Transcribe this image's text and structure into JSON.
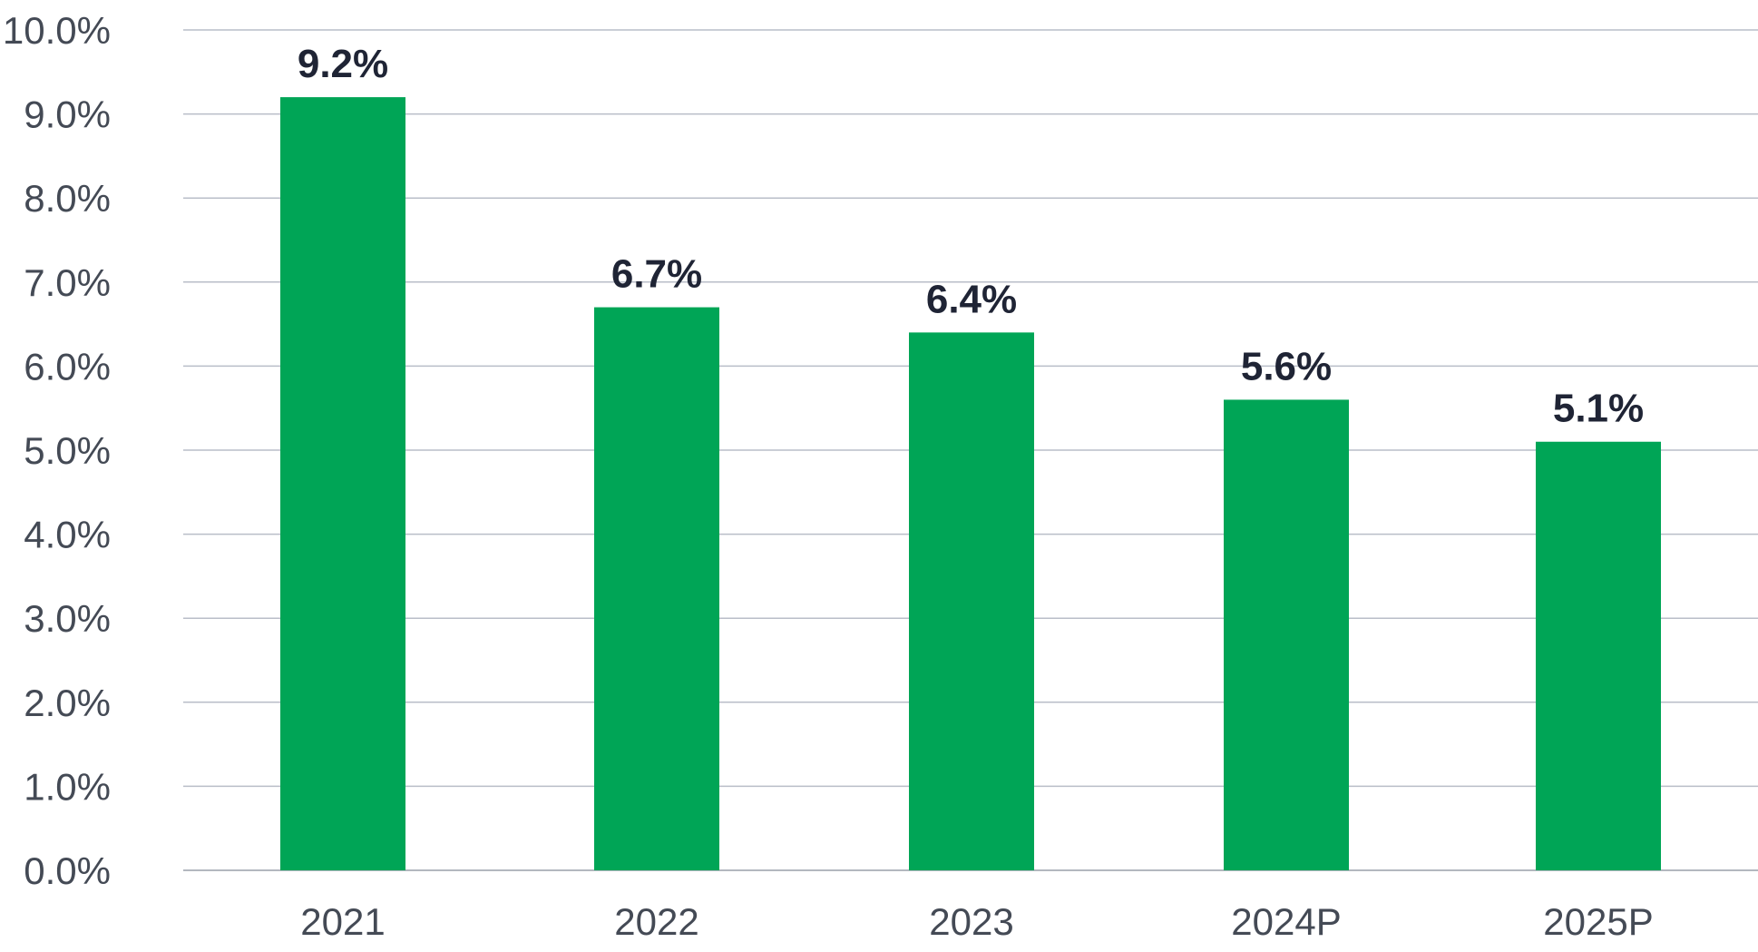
{
  "chart_data": {
    "type": "bar",
    "categories": [
      "2021",
      "2022",
      "2023",
      "2024P",
      "2025P"
    ],
    "values": [
      9.2,
      6.7,
      6.4,
      5.6,
      5.1
    ],
    "data_labels": [
      "9.2%",
      "6.7%",
      "6.4%",
      "5.6%",
      "5.1%"
    ],
    "title": "",
    "xlabel": "",
    "ylabel": "",
    "ylim": [
      0,
      10
    ],
    "y_ticks": [
      0,
      1,
      2,
      3,
      4,
      5,
      6,
      7,
      8,
      9,
      10
    ],
    "y_tick_labels": [
      "0.0%",
      "1.0%",
      "2.0%",
      "3.0%",
      "4.0%",
      "5.0%",
      "6.0%",
      "7.0%",
      "8.0%",
      "9.0%",
      "10.0%"
    ],
    "grid": true,
    "legend": "none",
    "colors": {
      "bar": "#00A556",
      "gridline": "#B9BEC8",
      "tick_text": "#444A55",
      "label_text": "#1F2435"
    }
  }
}
